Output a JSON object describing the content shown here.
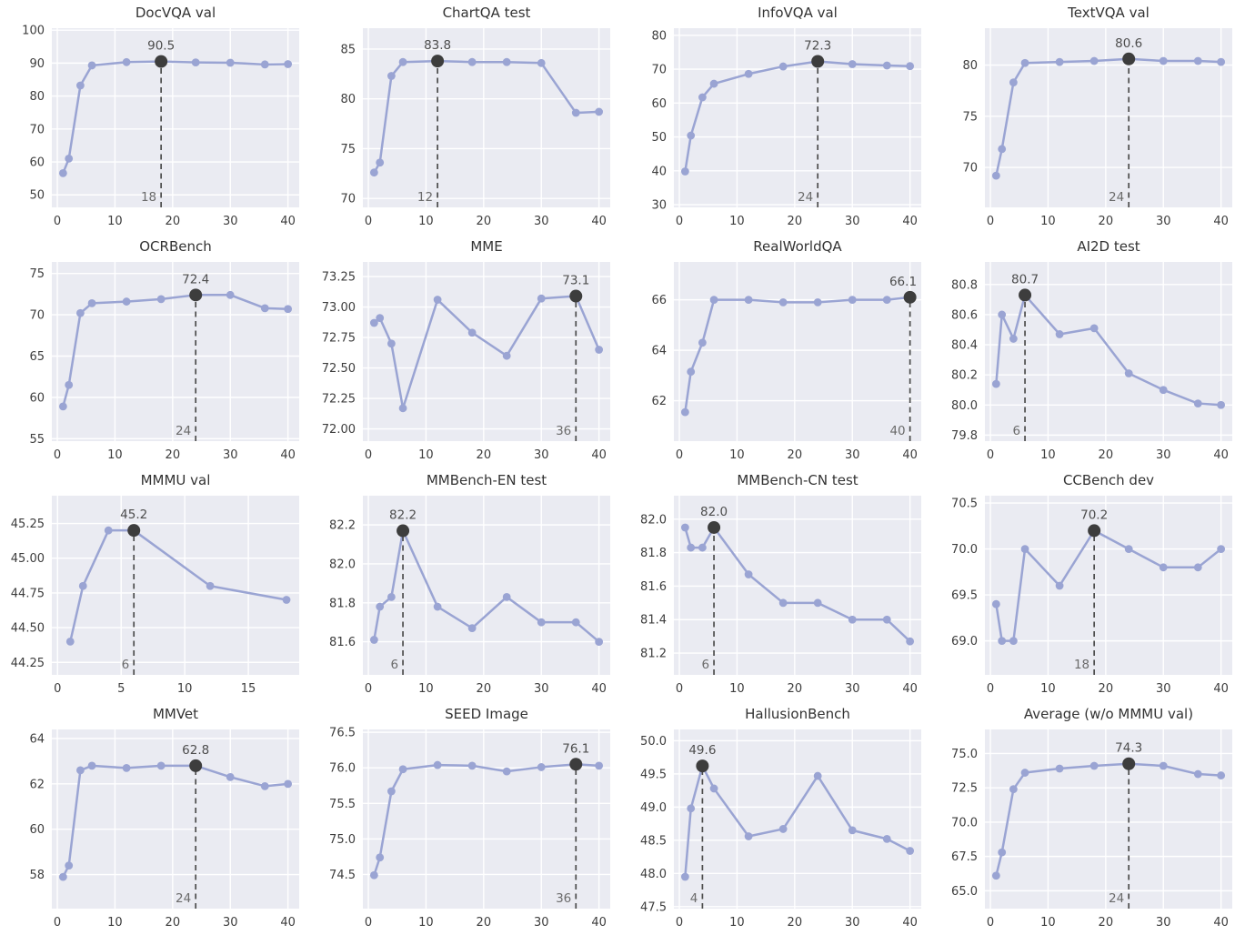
{
  "figure": {
    "background": "#ffffff",
    "rows": 4,
    "cols": 4
  },
  "style": {
    "plot_bg": "#eaebf2",
    "grid_color": "#ffffff",
    "line_color": "#9aa4d3",
    "marker_color": "#9aa4d3",
    "peak_dot_color": "#3d3d3d",
    "dash_color": "#4c4c4c",
    "title_color": "#333333",
    "tick_color": "#3d3d3d",
    "annot_value_color": "#4d4d4d",
    "annot_x_color": "#6b6b6b"
  },
  "chart_data": [
    {
      "type": "line",
      "title": "DocVQA val",
      "x": [
        1,
        2,
        4,
        6,
        12,
        18,
        24,
        30,
        36,
        40
      ],
      "y": [
        56.6,
        61.0,
        83.2,
        89.3,
        90.3,
        90.5,
        90.2,
        90.1,
        89.6,
        89.7
      ],
      "xticks": [
        "0",
        "10",
        "20",
        "30",
        "40"
      ],
      "yticks": [
        "50",
        "60",
        "70",
        "80",
        "90",
        "100"
      ],
      "xlim": [
        -0.95,
        41.95
      ],
      "ylim": [
        46.2,
        100.6
      ],
      "peak": {
        "x": 18,
        "y": 90.5,
        "value_label": "90.5",
        "x_label": "18"
      }
    },
    {
      "type": "line",
      "title": "ChartQA test",
      "x": [
        1,
        2,
        4,
        6,
        12,
        18,
        24,
        30,
        36,
        40
      ],
      "y": [
        72.6,
        73.6,
        82.3,
        83.7,
        83.8,
        83.7,
        83.7,
        83.6,
        78.6,
        78.7
      ],
      "xticks": [
        "0",
        "10",
        "20",
        "30",
        "40"
      ],
      "yticks": [
        "70",
        "75",
        "80",
        "85"
      ],
      "xlim": [
        -0.95,
        41.95
      ],
      "ylim": [
        69.1,
        87.1
      ],
      "peak": {
        "x": 12,
        "y": 83.8,
        "value_label": "83.8",
        "x_label": "12"
      }
    },
    {
      "type": "line",
      "title": "InfoVQA val",
      "x": [
        1,
        2,
        4,
        6,
        12,
        18,
        24,
        30,
        36,
        40
      ],
      "y": [
        39.8,
        50.4,
        61.7,
        65.7,
        68.6,
        70.8,
        72.3,
        71.5,
        71.1,
        70.9
      ],
      "xticks": [
        "0",
        "10",
        "20",
        "30",
        "40"
      ],
      "yticks": [
        "30",
        "40",
        "50",
        "60",
        "70",
        "80"
      ],
      "xlim": [
        -0.95,
        41.95
      ],
      "ylim": [
        29.2,
        82.1
      ],
      "peak": {
        "x": 24,
        "y": 72.3,
        "value_label": "72.3",
        "x_label": "24"
      }
    },
    {
      "type": "line",
      "title": "TextVQA val",
      "x": [
        1,
        2,
        4,
        6,
        12,
        18,
        24,
        30,
        36,
        40
      ],
      "y": [
        69.2,
        71.8,
        78.3,
        80.2,
        80.3,
        80.4,
        80.6,
        80.4,
        80.4,
        80.3
      ],
      "xticks": [
        "0",
        "10",
        "20",
        "30",
        "40"
      ],
      "yticks": [
        "70",
        "75",
        "80"
      ],
      "xlim": [
        -0.95,
        41.95
      ],
      "ylim": [
        66.1,
        83.6
      ],
      "peak": {
        "x": 24,
        "y": 80.6,
        "value_label": "80.6",
        "x_label": "24"
      }
    },
    {
      "type": "line",
      "title": "OCRBench",
      "x": [
        1,
        2,
        4,
        6,
        12,
        18,
        24,
        30,
        36,
        40
      ],
      "y": [
        58.9,
        61.5,
        70.2,
        71.4,
        71.6,
        71.9,
        72.4,
        72.4,
        70.8,
        70.7
      ],
      "xticks": [
        "0",
        "10",
        "20",
        "30",
        "40"
      ],
      "yticks": [
        "55",
        "60",
        "65",
        "70",
        "75"
      ],
      "xlim": [
        -0.95,
        41.95
      ],
      "ylim": [
        54.7,
        76.4
      ],
      "peak": {
        "x": 24,
        "y": 72.4,
        "value_label": "72.4",
        "x_label": "24"
      }
    },
    {
      "type": "line",
      "title": "MME",
      "x": [
        1,
        2,
        4,
        6,
        12,
        18,
        24,
        30,
        36,
        40
      ],
      "y": [
        72.87,
        72.91,
        72.7,
        72.17,
        73.06,
        72.79,
        72.6,
        73.07,
        73.09,
        72.65
      ],
      "xticks": [
        "0",
        "10",
        "20",
        "30",
        "40"
      ],
      "yticks": [
        "72.00",
        "72.25",
        "72.50",
        "72.75",
        "73.00",
        "73.25"
      ],
      "xlim": [
        -0.95,
        41.95
      ],
      "ylim": [
        71.9,
        73.37
      ],
      "peak": {
        "x": 36,
        "y": 73.09,
        "value_label": "73.1",
        "x_label": "36"
      }
    },
    {
      "type": "line",
      "title": "RealWorldQA",
      "x": [
        1,
        2,
        4,
        6,
        12,
        18,
        24,
        30,
        36,
        40
      ],
      "y": [
        61.55,
        63.15,
        64.3,
        66.0,
        66.0,
        65.9,
        65.9,
        66.0,
        66.0,
        66.1
      ],
      "xticks": [
        "0",
        "10",
        "20",
        "30",
        "40"
      ],
      "yticks": [
        "62",
        "64",
        "66"
      ],
      "xlim": [
        -0.95,
        41.95
      ],
      "ylim": [
        60.4,
        67.5
      ],
      "peak": {
        "x": 40,
        "y": 66.1,
        "value_label": "66.1",
        "x_label": "40"
      }
    },
    {
      "type": "line",
      "title": "AI2D test",
      "x": [
        1,
        2,
        4,
        6,
        12,
        18,
        24,
        30,
        36,
        40
      ],
      "y": [
        80.14,
        80.6,
        80.44,
        80.73,
        80.47,
        80.51,
        80.21,
        80.1,
        80.01,
        80.0
      ],
      "xticks": [
        "0",
        "10",
        "20",
        "30",
        "40"
      ],
      "yticks": [
        "79.8",
        "80.0",
        "80.2",
        "80.4",
        "80.6",
        "80.8"
      ],
      "xlim": [
        -0.95,
        41.95
      ],
      "ylim": [
        79.76,
        80.95
      ],
      "peak": {
        "x": 6,
        "y": 80.73,
        "value_label": "80.7",
        "x_label": "6"
      }
    },
    {
      "type": "line",
      "title": "MMMU val",
      "x": [
        1,
        2,
        4,
        6,
        12,
        18
      ],
      "y": [
        44.4,
        44.8,
        45.2,
        45.2,
        44.8,
        44.7
      ],
      "xticks": [
        "0",
        "5",
        "10",
        "15"
      ],
      "yticks": [
        "44.25",
        "44.50",
        "44.75",
        "45.00",
        "45.25"
      ],
      "xlim": [
        -0.45,
        19.0
      ],
      "ylim": [
        44.16,
        45.45
      ],
      "peak": {
        "x": 6,
        "y": 45.2,
        "value_label": "45.2",
        "x_label": "6"
      }
    },
    {
      "type": "line",
      "title": "MMBench-EN test",
      "x": [
        1,
        2,
        4,
        6,
        12,
        18,
        24,
        30,
        36,
        40
      ],
      "y": [
        81.61,
        81.78,
        81.83,
        82.17,
        81.78,
        81.67,
        81.83,
        81.7,
        81.7,
        81.6
      ],
      "xticks": [
        "0",
        "10",
        "20",
        "30",
        "40"
      ],
      "yticks": [
        "81.6",
        "81.8",
        "82.0",
        "82.2"
      ],
      "xlim": [
        -0.95,
        41.95
      ],
      "ylim": [
        81.43,
        82.35
      ],
      "peak": {
        "x": 6,
        "y": 82.17,
        "value_label": "82.2",
        "x_label": "6"
      }
    },
    {
      "type": "line",
      "title": "MMBench-CN test",
      "x": [
        1,
        2,
        4,
        6,
        12,
        18,
        24,
        30,
        36,
        40
      ],
      "y": [
        81.95,
        81.83,
        81.83,
        81.95,
        81.67,
        81.5,
        81.5,
        81.4,
        81.4,
        81.27
      ],
      "xticks": [
        "0",
        "10",
        "20",
        "30",
        "40"
      ],
      "yticks": [
        "81.2",
        "81.4",
        "81.6",
        "81.8",
        "82.0"
      ],
      "xlim": [
        -0.95,
        41.95
      ],
      "ylim": [
        81.07,
        82.14
      ],
      "peak": {
        "x": 6,
        "y": 81.95,
        "value_label": "82.0",
        "x_label": "6"
      }
    },
    {
      "type": "line",
      "title": "CCBench dev",
      "x": [
        1,
        2,
        4,
        6,
        12,
        18,
        24,
        30,
        36,
        40
      ],
      "y": [
        69.4,
        69.0,
        69.0,
        70.0,
        69.6,
        70.2,
        70.0,
        69.8,
        69.8,
        70.0
      ],
      "xticks": [
        "0",
        "10",
        "20",
        "30",
        "40"
      ],
      "yticks": [
        "69.0",
        "69.5",
        "70.0",
        "70.5"
      ],
      "xlim": [
        -0.95,
        41.95
      ],
      "ylim": [
        68.63,
        70.58
      ],
      "peak": {
        "x": 18,
        "y": 70.2,
        "value_label": "70.2",
        "x_label": "18"
      }
    },
    {
      "type": "line",
      "title": "MMVet",
      "x": [
        1,
        2,
        4,
        6,
        12,
        18,
        24,
        30,
        36,
        40
      ],
      "y": [
        57.9,
        58.4,
        62.6,
        62.8,
        62.7,
        62.8,
        62.8,
        62.3,
        61.9,
        62.0
      ],
      "xticks": [
        "0",
        "10",
        "20",
        "30",
        "40"
      ],
      "yticks": [
        "58",
        "60",
        "62",
        "64"
      ],
      "xlim": [
        -0.95,
        41.95
      ],
      "ylim": [
        56.5,
        64.4
      ],
      "peak": {
        "x": 24,
        "y": 62.8,
        "value_label": "62.8",
        "x_label": "24"
      }
    },
    {
      "type": "line",
      "title": "SEED Image",
      "x": [
        1,
        2,
        4,
        6,
        12,
        18,
        24,
        30,
        36,
        40
      ],
      "y": [
        74.49,
        74.74,
        75.67,
        75.98,
        76.04,
        76.03,
        75.95,
        76.01,
        76.05,
        76.03
      ],
      "xticks": [
        "0",
        "10",
        "20",
        "30",
        "40"
      ],
      "yticks": [
        "74.5",
        "75.0",
        "75.5",
        "76.0",
        "76.5"
      ],
      "xlim": [
        -0.95,
        41.95
      ],
      "ylim": [
        74.02,
        76.54
      ],
      "peak": {
        "x": 36,
        "y": 76.05,
        "value_label": "76.1",
        "x_label": "36"
      }
    },
    {
      "type": "line",
      "title": "HallusionBench",
      "x": [
        1,
        2,
        4,
        6,
        12,
        18,
        24,
        30,
        36,
        40
      ],
      "y": [
        47.95,
        48.98,
        49.62,
        49.28,
        48.56,
        48.67,
        49.47,
        48.65,
        48.52,
        48.34
      ],
      "xticks": [
        "0",
        "10",
        "20",
        "30",
        "40"
      ],
      "yticks": [
        "47.5",
        "48.0",
        "48.5",
        "49.0",
        "49.5",
        "50.0"
      ],
      "xlim": [
        -0.95,
        41.95
      ],
      "ylim": [
        47.47,
        50.17
      ],
      "peak": {
        "x": 4,
        "y": 49.62,
        "value_label": "49.6",
        "x_label": "4"
      }
    },
    {
      "type": "line",
      "title": "Average (w/o MMMU val)",
      "x": [
        1,
        2,
        4,
        6,
        12,
        18,
        24,
        30,
        36,
        40
      ],
      "y": [
        66.1,
        67.8,
        72.4,
        73.6,
        73.9,
        74.1,
        74.25,
        74.1,
        73.5,
        73.4
      ],
      "xticks": [
        "0",
        "10",
        "20",
        "30",
        "40"
      ],
      "yticks": [
        "65.0",
        "67.5",
        "70.0",
        "72.5",
        "75.0"
      ],
      "xlim": [
        -0.95,
        41.95
      ],
      "ylim": [
        63.7,
        76.75
      ],
      "peak": {
        "x": 24,
        "y": 74.25,
        "value_label": "74.3",
        "x_label": "24"
      }
    }
  ]
}
